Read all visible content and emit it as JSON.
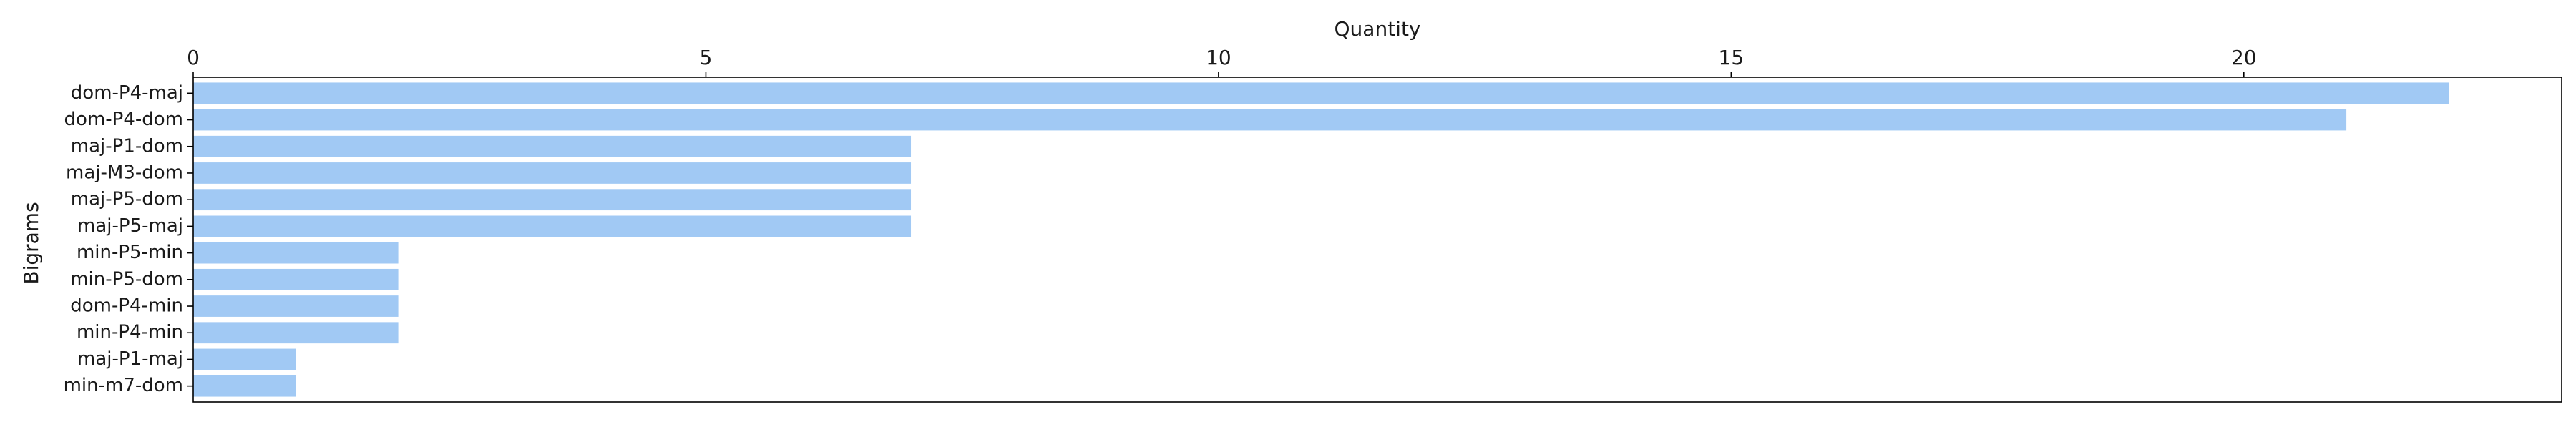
{
  "chart_data": {
    "type": "bar",
    "orientation": "horizontal",
    "title": "",
    "xlabel": "Quantity",
    "ylabel": "Bigrams",
    "xaxis_position": "top",
    "xlim": [
      0,
      23.1
    ],
    "xticks": [
      0,
      5,
      10,
      15,
      20
    ],
    "grid": false,
    "categories": [
      "dom-P4-maj",
      "dom-P4-dom",
      "maj-P1-dom",
      "maj-M3-dom",
      "maj-P5-dom",
      "maj-P5-maj",
      "min-P5-min",
      "min-P5-dom",
      "dom-P4-min",
      "min-P4-min",
      "maj-P1-maj",
      "min-m7-dom"
    ],
    "values": [
      22,
      21,
      7,
      7,
      7,
      7,
      2,
      2,
      2,
      2,
      1,
      1
    ],
    "bar_color": "#a1c9f4"
  }
}
